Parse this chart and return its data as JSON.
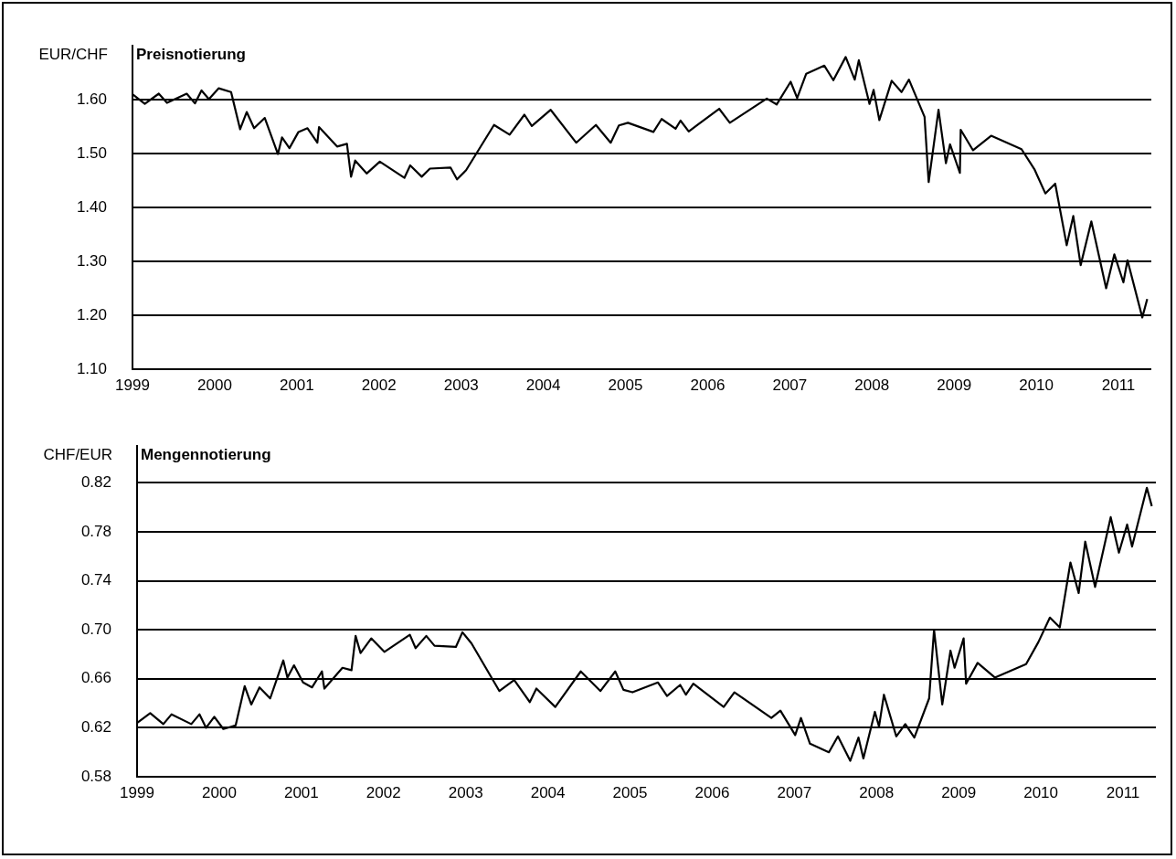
{
  "chart_data": [
    {
      "type": "line",
      "title": "Preisnotierung",
      "ylabel": "EUR/CHF",
      "grid": "y",
      "legend": false,
      "marker": "none",
      "line_style": "solid",
      "xlim": [
        1999,
        2011.4
      ],
      "xticks": [
        1999,
        2000,
        2001,
        2002,
        2003,
        2004,
        2005,
        2006,
        2007,
        2008,
        2009,
        2010,
        2011
      ],
      "ylim": [
        1.1,
        1.7
      ],
      "yticks": [
        {
          "value": 1.1,
          "label": "1.10"
        },
        {
          "value": 1.2,
          "label": "1.20"
        },
        {
          "value": 1.3,
          "label": "1.30"
        },
        {
          "value": 1.4,
          "label": "1.40"
        },
        {
          "value": 1.5,
          "label": "1.50"
        },
        {
          "value": 1.6,
          "label": "1.60"
        }
      ],
      "series": [
        {
          "color": "#000000",
          "x": [
            1999.0,
            1999.15,
            1999.32,
            1999.42,
            1999.66,
            1999.76,
            1999.84,
            1999.93,
            2000.05,
            2000.2,
            2000.31,
            2000.39,
            2000.48,
            2000.61,
            2000.77,
            2000.82,
            2000.91,
            2001.02,
            2001.13,
            2001.25,
            2001.27,
            2001.49,
            2001.61,
            2001.66,
            2001.71,
            2001.85,
            2002.01,
            2002.31,
            2002.38,
            2002.52,
            2002.62,
            2002.87,
            2002.95,
            2003.06,
            2003.4,
            2003.59,
            2003.77,
            2003.86,
            2004.09,
            2004.4,
            2004.64,
            2004.82,
            2004.92,
            2005.03,
            2005.34,
            2005.44,
            2005.61,
            2005.67,
            2005.77,
            2006.14,
            2006.27,
            2006.72,
            2006.84,
            2007.01,
            2007.09,
            2007.2,
            2007.42,
            2007.53,
            2007.68,
            2007.79,
            2007.84,
            2007.97,
            2008.02,
            2008.09,
            2008.24,
            2008.36,
            2008.45,
            2008.64,
            2008.69,
            2008.81,
            2008.9,
            2008.95,
            2009.07,
            2009.08,
            2009.23,
            2009.45,
            2009.82,
            2009.98,
            2010.11,
            2010.23,
            2010.37,
            2010.45,
            2010.54,
            2010.67,
            2010.85,
            2010.95,
            2011.06,
            2011.11,
            2011.29,
            2011.35
          ],
          "values": [
            1.61,
            1.592,
            1.611,
            1.594,
            1.611,
            1.593,
            1.617,
            1.601,
            1.621,
            1.614,
            1.545,
            1.577,
            1.547,
            1.566,
            1.499,
            1.53,
            1.51,
            1.54,
            1.547,
            1.52,
            1.549,
            1.513,
            1.518,
            1.457,
            1.487,
            1.463,
            1.485,
            1.455,
            1.478,
            1.457,
            1.472,
            1.474,
            1.452,
            1.469,
            1.553,
            1.535,
            1.572,
            1.551,
            1.581,
            1.52,
            1.553,
            1.52,
            1.552,
            1.557,
            1.54,
            1.564,
            1.546,
            1.561,
            1.541,
            1.583,
            1.557,
            1.602,
            1.591,
            1.633,
            1.603,
            1.648,
            1.663,
            1.636,
            1.679,
            1.637,
            1.673,
            1.592,
            1.618,
            1.562,
            1.635,
            1.614,
            1.637,
            1.568,
            1.447,
            1.581,
            1.482,
            1.517,
            1.464,
            1.544,
            1.506,
            1.533,
            1.508,
            1.47,
            1.426,
            1.444,
            1.33,
            1.384,
            1.293,
            1.374,
            1.25,
            1.313,
            1.261,
            1.302,
            1.196,
            1.23
          ]
        }
      ]
    },
    {
      "type": "line",
      "title": "Mengennotierung",
      "ylabel": "CHF/EUR",
      "grid": "y",
      "legend": false,
      "marker": "none",
      "line_style": "solid",
      "xlim": [
        1999,
        2011.4
      ],
      "xticks": [
        1999,
        2000,
        2001,
        2002,
        2003,
        2004,
        2005,
        2006,
        2007,
        2008,
        2009,
        2010,
        2011
      ],
      "ylim": [
        0.58,
        0.85
      ],
      "yticks": [
        0.58,
        0.62,
        0.66,
        {
          "value": 0.7,
          "label": "0.70"
        },
        0.74,
        0.78,
        0.82
      ],
      "series": [
        {
          "color": "#000000",
          "x": [
            1999.0,
            1999.16,
            1999.32,
            1999.42,
            1999.66,
            1999.76,
            1999.84,
            1999.94,
            2000.05,
            2000.2,
            2000.31,
            2000.39,
            2000.49,
            2000.62,
            2000.78,
            2000.83,
            2000.91,
            2001.02,
            2001.13,
            2001.25,
            2001.28,
            2001.5,
            2001.61,
            2001.66,
            2001.72,
            2001.85,
            2002.01,
            2002.32,
            2002.39,
            2002.52,
            2002.62,
            2002.88,
            2002.96,
            2003.07,
            2003.41,
            2003.59,
            2003.78,
            2003.86,
            2004.09,
            2004.4,
            2004.64,
            2004.82,
            2004.92,
            2005.03,
            2005.34,
            2005.45,
            2005.61,
            2005.68,
            2005.77,
            2006.14,
            2006.27,
            2006.72,
            2006.83,
            2007.01,
            2007.08,
            2007.19,
            2007.42,
            2007.53,
            2007.68,
            2007.78,
            2007.84,
            2007.98,
            2008.03,
            2008.09,
            2008.24,
            2008.35,
            2008.46,
            2008.64,
            2008.7,
            2008.8,
            2008.9,
            2008.95,
            2009.06,
            2009.09,
            2009.23,
            2009.44,
            2009.82,
            2009.97,
            2010.11,
            2010.23,
            2010.36,
            2010.46,
            2010.54,
            2010.66,
            2010.85,
            2010.95,
            2011.05,
            2011.11,
            2011.29,
            2011.35
          ],
          "values": [
            0.624,
            0.632,
            0.623,
            0.631,
            0.623,
            0.631,
            0.62,
            0.629,
            0.619,
            0.622,
            0.654,
            0.639,
            0.653,
            0.644,
            0.675,
            0.661,
            0.671,
            0.657,
            0.653,
            0.666,
            0.652,
            0.669,
            0.667,
            0.695,
            0.681,
            0.693,
            0.682,
            0.696,
            0.685,
            0.695,
            0.687,
            0.686,
            0.698,
            0.689,
            0.65,
            0.659,
            0.641,
            0.652,
            0.637,
            0.666,
            0.65,
            0.666,
            0.651,
            0.649,
            0.657,
            0.646,
            0.655,
            0.647,
            0.656,
            0.637,
            0.649,
            0.628,
            0.634,
            0.614,
            0.628,
            0.607,
            0.6,
            0.613,
            0.593,
            0.612,
            0.595,
            0.633,
            0.621,
            0.647,
            0.613,
            0.623,
            0.612,
            0.644,
            0.7,
            0.639,
            0.683,
            0.669,
            0.693,
            0.656,
            0.673,
            0.661,
            0.672,
            0.69,
            0.71,
            0.702,
            0.755,
            0.73,
            0.772,
            0.735,
            0.792,
            0.763,
            0.786,
            0.768,
            0.816,
            0.801
          ]
        }
      ]
    }
  ]
}
